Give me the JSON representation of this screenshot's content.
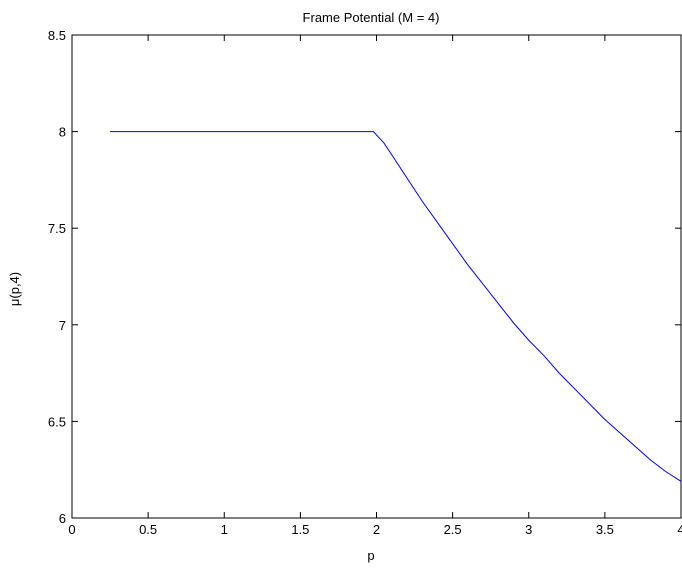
{
  "chart_data": {
    "type": "line",
    "title": "Frame Potential (M = 4)",
    "xlabel": "p",
    "ylabel": "μ(p,4)",
    "xlim": [
      0,
      4
    ],
    "ylim": [
      6,
      8.5
    ],
    "xticks": [
      0,
      0.5,
      1,
      1.5,
      2,
      2.5,
      3,
      3.5,
      4
    ],
    "xtick_labels": [
      "0",
      "0.5",
      "1",
      "1.5",
      "2",
      "2.5",
      "3",
      "3.5",
      "4"
    ],
    "yticks": [
      6,
      6.5,
      7,
      7.5,
      8,
      8.5
    ],
    "ytick_labels": [
      "6",
      "6.5",
      "7",
      "7.5",
      "8",
      "8.5"
    ],
    "grid": false,
    "series": [
      {
        "color": "#0000ff",
        "x": [
          0.25,
          0.5,
          1.0,
          1.5,
          1.98,
          2.05,
          2.1,
          2.2,
          2.3,
          2.4,
          2.5,
          2.6,
          2.7,
          2.8,
          2.9,
          3.0,
          3.1,
          3.2,
          3.3,
          3.4,
          3.5,
          3.6,
          3.7,
          3.8,
          3.9,
          4.0
        ],
        "y": [
          8.0,
          8.0,
          8.0,
          8.0,
          8.0,
          7.94,
          7.88,
          7.76,
          7.64,
          7.53,
          7.42,
          7.31,
          7.21,
          7.11,
          7.01,
          6.92,
          6.84,
          6.75,
          6.67,
          6.59,
          6.51,
          6.44,
          6.37,
          6.3,
          6.24,
          6.19
        ]
      }
    ]
  }
}
